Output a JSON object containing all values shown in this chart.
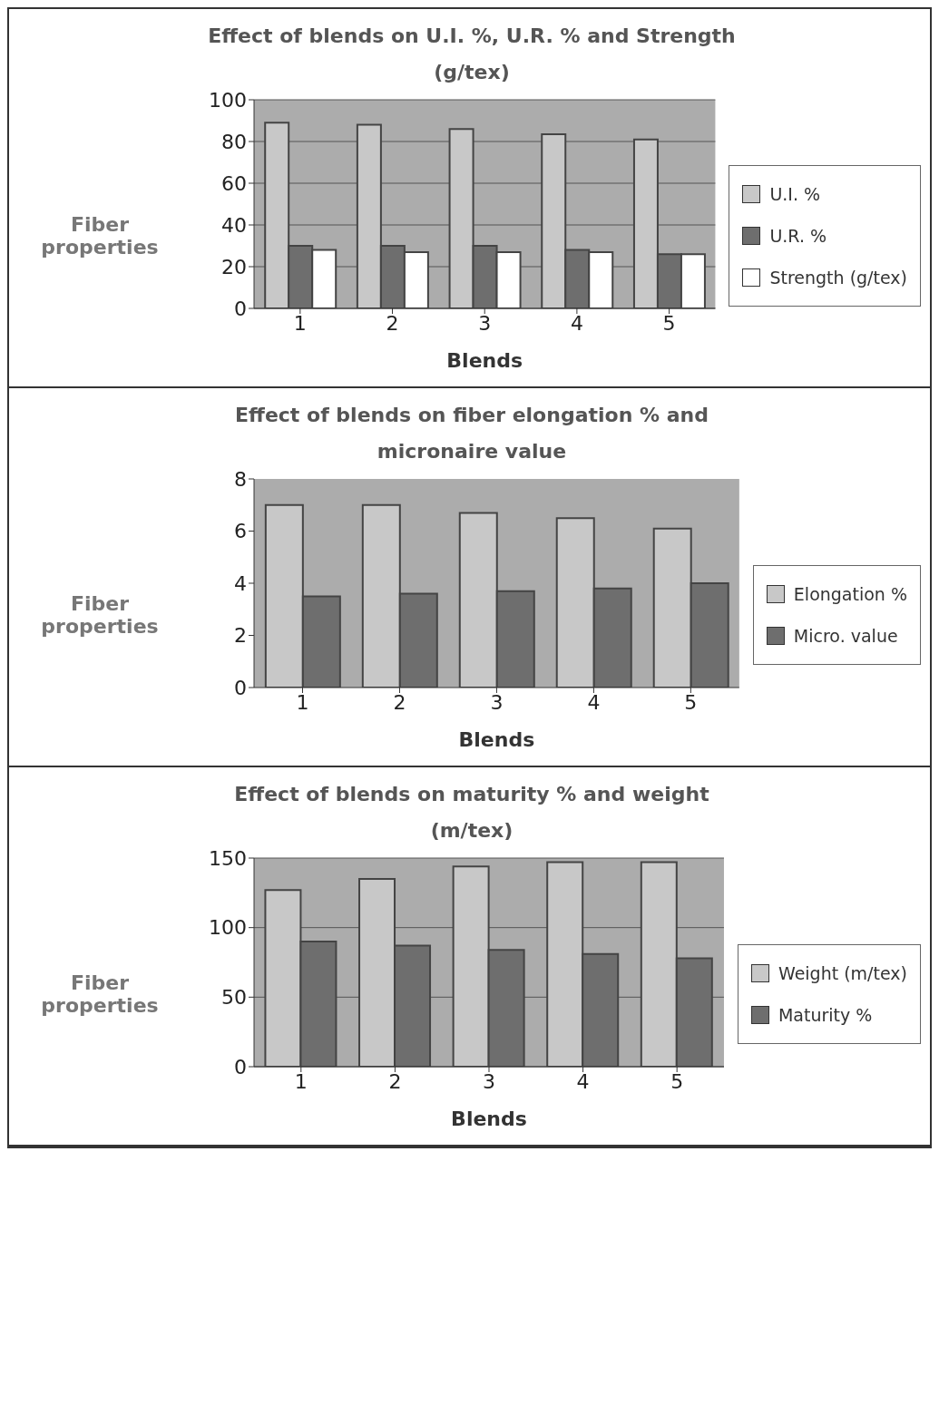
{
  "chart_data": [
    {
      "type": "bar",
      "title": "Effect of blends on U.I. %, U.R. % and Strength (g/tex)",
      "xlabel": "Blends",
      "ylabel": "Fiber properties",
      "categories": [
        "1",
        "2",
        "3",
        "4",
        "5"
      ],
      "series": [
        {
          "name": "U.I. %",
          "color": "#c8c8c8",
          "values": [
            89,
            88,
            86,
            83.5,
            81
          ]
        },
        {
          "name": "U.R. %",
          "color": "#6e6e6e",
          "values": [
            30,
            30,
            30,
            28,
            26
          ]
        },
        {
          "name": "Strength (g/tex)",
          "color": "#ffffff",
          "values": [
            28,
            27,
            27,
            27,
            26
          ]
        }
      ],
      "ylim": [
        0,
        100
      ],
      "yticks": [
        0,
        20,
        40,
        60,
        80,
        100
      ],
      "grid": "y",
      "legend": "right"
    },
    {
      "type": "bar",
      "title": "Effect of blends on fiber elongation % and micronaire value",
      "xlabel": "Blends",
      "ylabel": "Fiber properties",
      "categories": [
        "1",
        "2",
        "3",
        "4",
        "5"
      ],
      "series": [
        {
          "name": "Elongation %",
          "color": "#c8c8c8",
          "values": [
            7.0,
            7.0,
            6.7,
            6.5,
            6.1
          ]
        },
        {
          "name": "Micro. value",
          "color": "#6e6e6e",
          "values": [
            3.5,
            3.6,
            3.7,
            3.8,
            4.0
          ]
        }
      ],
      "ylim": [
        0,
        8
      ],
      "yticks": [
        0,
        2,
        4,
        6,
        8
      ],
      "legend": "right"
    },
    {
      "type": "bar",
      "title": "Effect of blends on maturity % and weight (m/tex)",
      "xlabel": "Blends",
      "ylabel": "Fiber properties",
      "categories": [
        "1",
        "2",
        "3",
        "4",
        "5"
      ],
      "series": [
        {
          "name": "Weight (m/tex)",
          "color": "#c8c8c8",
          "values": [
            127,
            135,
            144,
            147,
            147
          ]
        },
        {
          "name": "Maturity %",
          "color": "#6e6e6e",
          "values": [
            90,
            87,
            84,
            81,
            78
          ]
        }
      ],
      "ylim": [
        0,
        150
      ],
      "yticks": [
        0,
        50,
        100,
        150
      ],
      "grid": "y",
      "legend": "right"
    }
  ]
}
